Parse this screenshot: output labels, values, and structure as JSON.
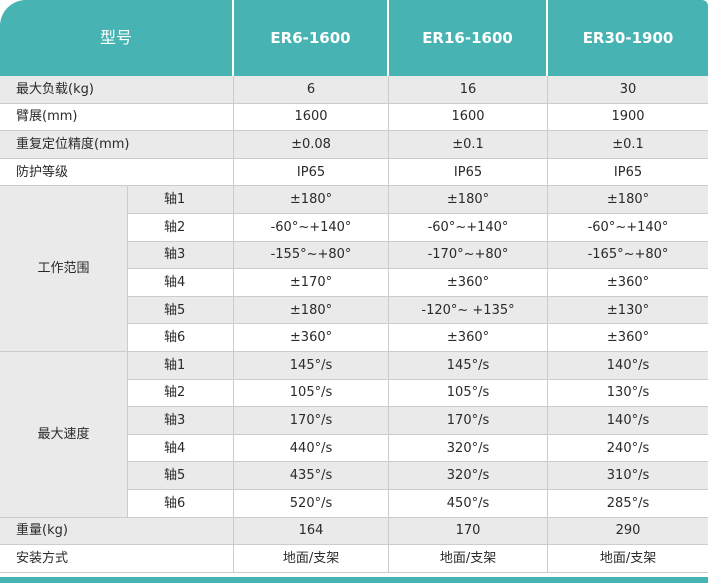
{
  "header": {
    "model_label": "型号",
    "models": [
      "ER6-1600",
      "ER16-1600",
      "ER30-1900"
    ]
  },
  "rows_top": [
    {
      "label": "最大负载(kg)",
      "values": [
        "6",
        "16",
        "30"
      ]
    },
    {
      "label": "臂展(mm)",
      "values": [
        "1600",
        "1600",
        "1900"
      ]
    },
    {
      "label": "重复定位精度(mm)",
      "values": [
        "±0.08",
        "±0.1",
        "±0.1"
      ]
    },
    {
      "label": "防护等级",
      "values": [
        "IP65",
        "IP65",
        "IP65"
      ]
    }
  ],
  "working_range": {
    "label": "工作范围",
    "axes": [
      {
        "axis": "轴1",
        "values": [
          "±180°",
          "±180°",
          "±180°"
        ]
      },
      {
        "axis": "轴2",
        "values": [
          "-60°~+140°",
          "-60°~+140°",
          "-60°~+140°"
        ]
      },
      {
        "axis": "轴3",
        "values": [
          "-155°~+80°",
          "-170°~+80°",
          "-165°~+80°"
        ]
      },
      {
        "axis": "轴4",
        "values": [
          "±170°",
          "±360°",
          "±360°"
        ]
      },
      {
        "axis": "轴5",
        "values": [
          "±180°",
          "-120°~ +135°",
          "±130°"
        ]
      },
      {
        "axis": "轴6",
        "values": [
          "±360°",
          "±360°",
          "±360°"
        ]
      }
    ]
  },
  "max_speed": {
    "label": "最大速度",
    "axes": [
      {
        "axis": "轴1",
        "values": [
          "145°/s",
          "145°/s",
          "140°/s"
        ]
      },
      {
        "axis": "轴2",
        "values": [
          "105°/s",
          "105°/s",
          "130°/s"
        ]
      },
      {
        "axis": "轴3",
        "values": [
          "170°/s",
          "170°/s",
          "140°/s"
        ]
      },
      {
        "axis": "轴4",
        "values": [
          "440°/s",
          "320°/s",
          "240°/s"
        ]
      },
      {
        "axis": "轴5",
        "values": [
          "435°/s",
          "320°/s",
          "310°/s"
        ]
      },
      {
        "axis": "轴6",
        "values": [
          "520°/s",
          "450°/s",
          "285°/s"
        ]
      }
    ]
  },
  "rows_bottom": [
    {
      "label": "重量(kg)",
      "values": [
        "164",
        "170",
        "290"
      ]
    },
    {
      "label": "安装方式",
      "values": [
        "地面/支架",
        "地面/支架",
        "地面/支架"
      ]
    }
  ],
  "colors": {
    "header_bg": "#47b3b3",
    "shade_bg": "#eaeaeb",
    "grid": "#c9cdcd"
  }
}
